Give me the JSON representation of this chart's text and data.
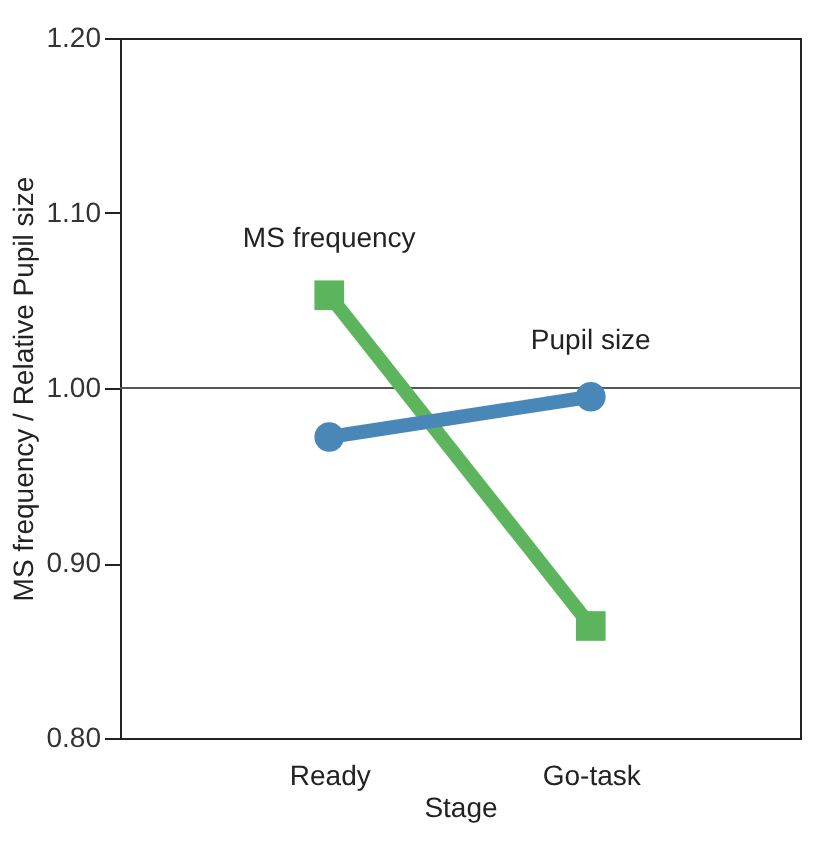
{
  "chart_data": {
    "type": "line",
    "xlabel": "Stage",
    "ylabel": "MS frequency / Relative Pupil size",
    "categories": [
      "Ready",
      "Go-task"
    ],
    "series": [
      {
        "name": "MS frequency",
        "color": "#5cb55c",
        "values": [
          1.053,
          0.864
        ],
        "marker": "square"
      },
      {
        "name": "Pupil size",
        "color": "#4a87b9",
        "values": [
          0.972,
          0.995
        ],
        "marker": "circle"
      }
    ],
    "ylim": [
      0.8,
      1.2
    ],
    "yticks": [
      {
        "value": 0.8,
        "label": "0.80"
      },
      {
        "value": 0.9,
        "label": "0.90"
      },
      {
        "value": 1.0,
        "label": "1.00"
      },
      {
        "value": 1.1,
        "label": "1.10"
      },
      {
        "value": 1.2,
        "label": "1.20"
      }
    ],
    "ref_lines": [
      {
        "axis": "y",
        "value": 1.0,
        "color": "#555555"
      }
    ],
    "grid": false,
    "legend": false
  }
}
